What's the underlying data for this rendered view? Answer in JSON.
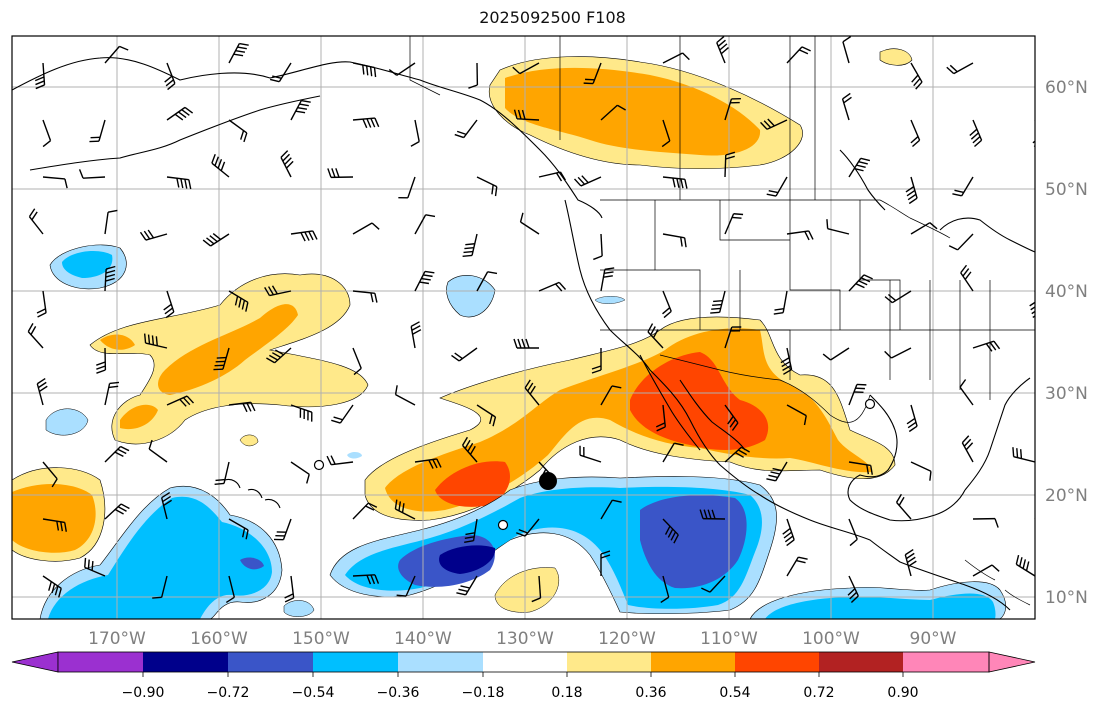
{
  "map": {
    "title": "2025092500 F108",
    "lon_ticks": [
      "170°W",
      "160°W",
      "150°W",
      "140°W",
      "130°W",
      "120°W",
      "110°W",
      "100°W",
      "90°W"
    ],
    "lat_ticks": [
      "60°N",
      "50°N",
      "40°N",
      "30°N",
      "20°N",
      "10°N"
    ],
    "tick_label_color": "#7f7f7f",
    "gridlines": true
  },
  "colorbar": {
    "ticks": [
      "−0.90",
      "−0.72",
      "−0.54",
      "−0.36",
      "−0.18",
      "0.18",
      "0.36",
      "0.54",
      "0.72",
      "0.90"
    ],
    "colors": [
      "#9b30d0",
      "#00008b",
      "#3a55c8",
      "#00bfff",
      "#aadfff",
      "#ffffff",
      "#ffe98a",
      "#ffa500",
      "#ff4500",
      "#b22222",
      "#ff86b8"
    ]
  },
  "colors": {
    "yellow": "#ffe98a",
    "orange": "#ffa500",
    "red": "#ff4500",
    "lightblue": "#aadfff",
    "blue": "#00bfff",
    "medblue": "#3a55c8",
    "darkblue": "#00008b"
  }
}
